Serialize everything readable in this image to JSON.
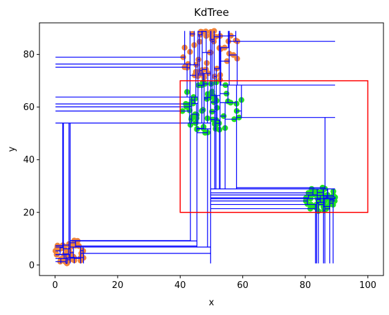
{
  "chart_data": {
    "type": "scatter",
    "title": "KdTree",
    "xlabel": "x",
    "ylabel": "y",
    "xlim": [
      -5,
      105
    ],
    "ylim": [
      -4,
      92
    ],
    "xticks": [
      0,
      20,
      40,
      60,
      80,
      100
    ],
    "yticks": [
      0,
      20,
      40,
      60,
      80
    ],
    "grid": false,
    "colors": {
      "orange": "#f0833a",
      "green": "#22e022",
      "tree": "#0000ff",
      "query": "#ff0000"
    },
    "clusters": [
      {
        "color": "orange",
        "center": [
          5,
          5
        ],
        "radius": 5,
        "count": 45
      },
      {
        "color": "orange",
        "center": [
          50,
          80
        ],
        "radius": 10,
        "count": 50
      },
      {
        "color": "green",
        "center": [
          50,
          60
        ],
        "radius": 10,
        "count": 60
      },
      {
        "color": "green",
        "center": [
          85,
          25
        ],
        "radius": 5,
        "count": 55
      }
    ],
    "query_rect": {
      "x": [
        40,
        100
      ],
      "y": [
        20,
        70
      ]
    }
  }
}
